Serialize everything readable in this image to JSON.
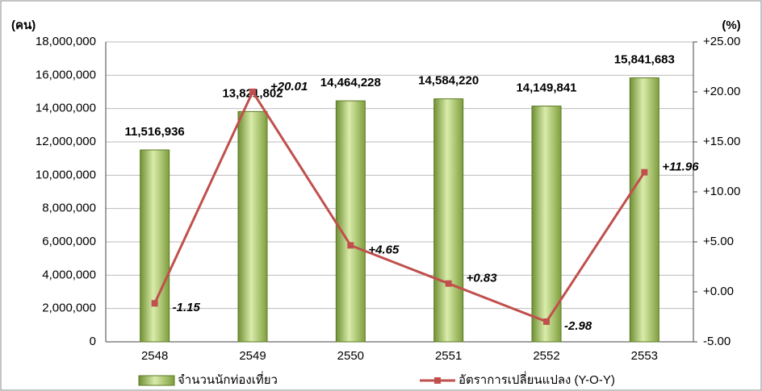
{
  "chart_data": {
    "type": "bar_line",
    "y_label": "(คน)",
    "y2_label": "(%)",
    "categories": [
      "2548",
      "2549",
      "2550",
      "2551",
      "2552",
      "2553"
    ],
    "series": [
      {
        "name": "จำนวนนักท่องเที่ยว",
        "type": "bar",
        "color": "#a8c86a",
        "values": [
          11516936,
          13821802,
          14464228,
          14584220,
          14149841,
          15841683
        ],
        "value_labels": [
          "11,516,936",
          "13,821,802",
          "14,464,228",
          "14,584,220",
          "14,149,841",
          "15,841,683"
        ]
      },
      {
        "name": "อัตราการเปลี่ยนแปลง (Y-O-Y)",
        "type": "line",
        "axis": "y2",
        "color": "#c0504d",
        "values": [
          -1.15,
          20.01,
          4.65,
          0.83,
          -2.98,
          11.96
        ],
        "value_labels": [
          "-1.15",
          "+20.01",
          "+4.65",
          "+0.83",
          "-2.98",
          "+11.96"
        ]
      }
    ],
    "ylim": [
      0,
      18000000
    ],
    "yticks": [
      {
        "value": 0,
        "label": "0"
      },
      {
        "value": 2000000,
        "label": "2,000,000"
      },
      {
        "value": 4000000,
        "label": "4,000,000"
      },
      {
        "value": 6000000,
        "label": "6,000,000"
      },
      {
        "value": 8000000,
        "label": "8,000,000"
      },
      {
        "value": 10000000,
        "label": "10,000,000"
      },
      {
        "value": 12000000,
        "label": "12,000,000"
      },
      {
        "value": 14000000,
        "label": "14,000,000"
      },
      {
        "value": 16000000,
        "label": "16,000,000"
      },
      {
        "value": 18000000,
        "label": "18,000,000"
      }
    ],
    "y2lim": [
      -5,
      25
    ],
    "y2ticks": [
      {
        "value": -5,
        "label": "-5.00"
      },
      {
        "value": 0,
        "label": "+0.00"
      },
      {
        "value": 5,
        "label": "+5.00"
      },
      {
        "value": 10,
        "label": "+10.00"
      },
      {
        "value": 15,
        "label": "+15.00"
      },
      {
        "value": 20,
        "label": "+20.00"
      },
      {
        "value": 25,
        "label": "+25.00"
      }
    ],
    "grid": true
  }
}
